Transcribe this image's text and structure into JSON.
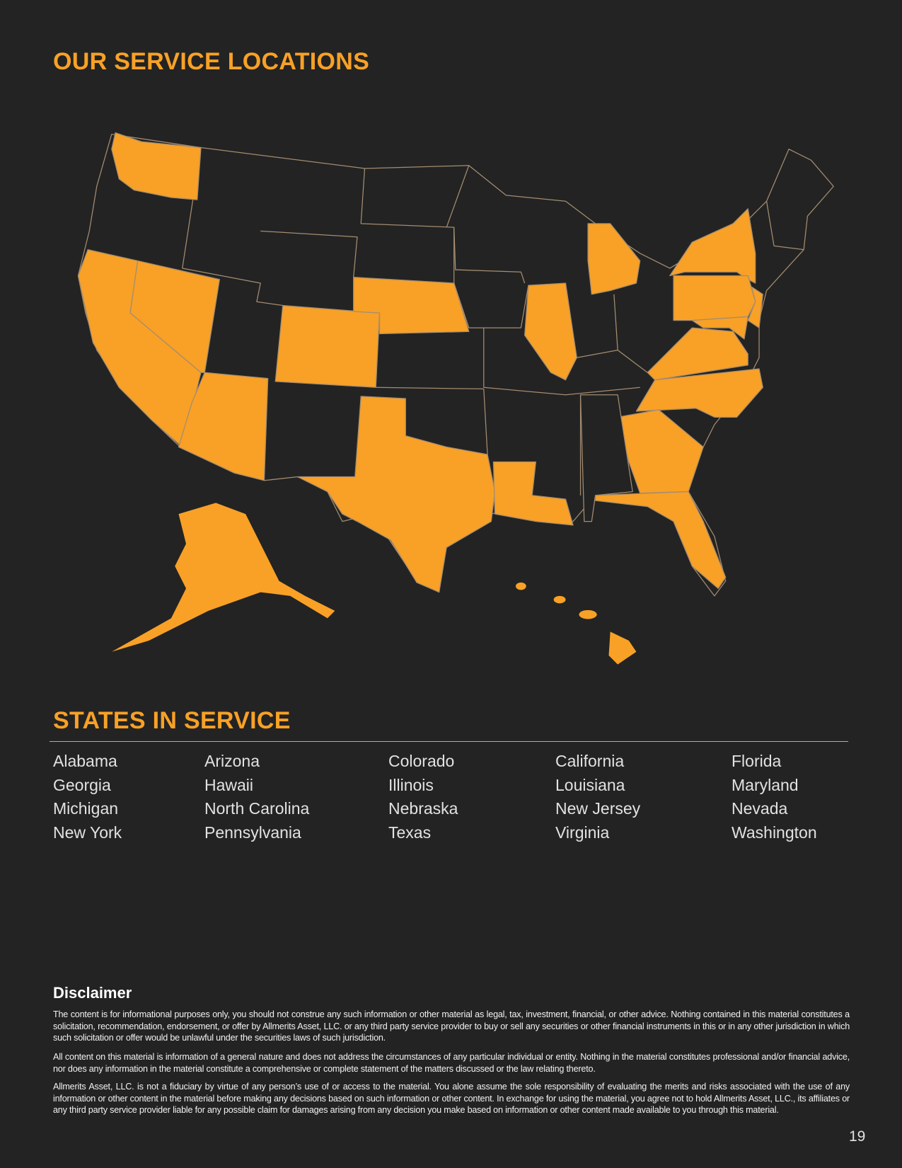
{
  "header": {
    "title": "OUR SERVICE LOCATIONS"
  },
  "states": {
    "title": "STATES IN SERVICE",
    "rows": [
      [
        "Alabama",
        "Arizona",
        "Colorado",
        "California",
        "Florida"
      ],
      [
        "Georgia",
        "Hawaii",
        "Illinois",
        "Louisiana",
        "Maryland"
      ],
      [
        "Michigan",
        "North Carolina",
        "Nebraska",
        "New Jersey",
        "Nevada"
      ],
      [
        "New York",
        "Pennsylvania",
        "Texas",
        "Virginia",
        "Washington"
      ]
    ]
  },
  "disclaimer": {
    "title": "Disclaimer",
    "paragraphs": [
      "The content is for informational purposes only, you should not construe any such information or other material as legal, tax, investment, financial, or other advice. Nothing contained in this material constitutes a solicitation, recommendation, endorsement, or offer by Allmerits Asset, LLC. or any third party service provider to buy or sell any securities or other financial instruments in this or in any other jurisdiction in which such solicitation or offer would be unlawful under the securities laws of such jurisdiction.",
      "All content on this material is information of a general nature and does not address the circumstances of any particular individual or entity. Nothing in the material constitutes professional and/or financial advice, nor does any information in the material constitute a comprehensive or complete statement of the matters discussed or the law relating thereto.",
      "Allmerits Asset, LLC. is not a fiduciary by virtue of any person’s use of or access to the material. You alone assume the sole responsibility of evaluating the merits and risks associated with the use of any information or other content in the material before making any decisions based on such information or other content. In exchange for using the material, you agree not to hold Allmerits Asset, LLC., its affiliates or any third party service provider liable for any possible claim for damages arising from any decision you make based on information or other content made available to you through this material."
    ]
  },
  "page_number": 19
}
